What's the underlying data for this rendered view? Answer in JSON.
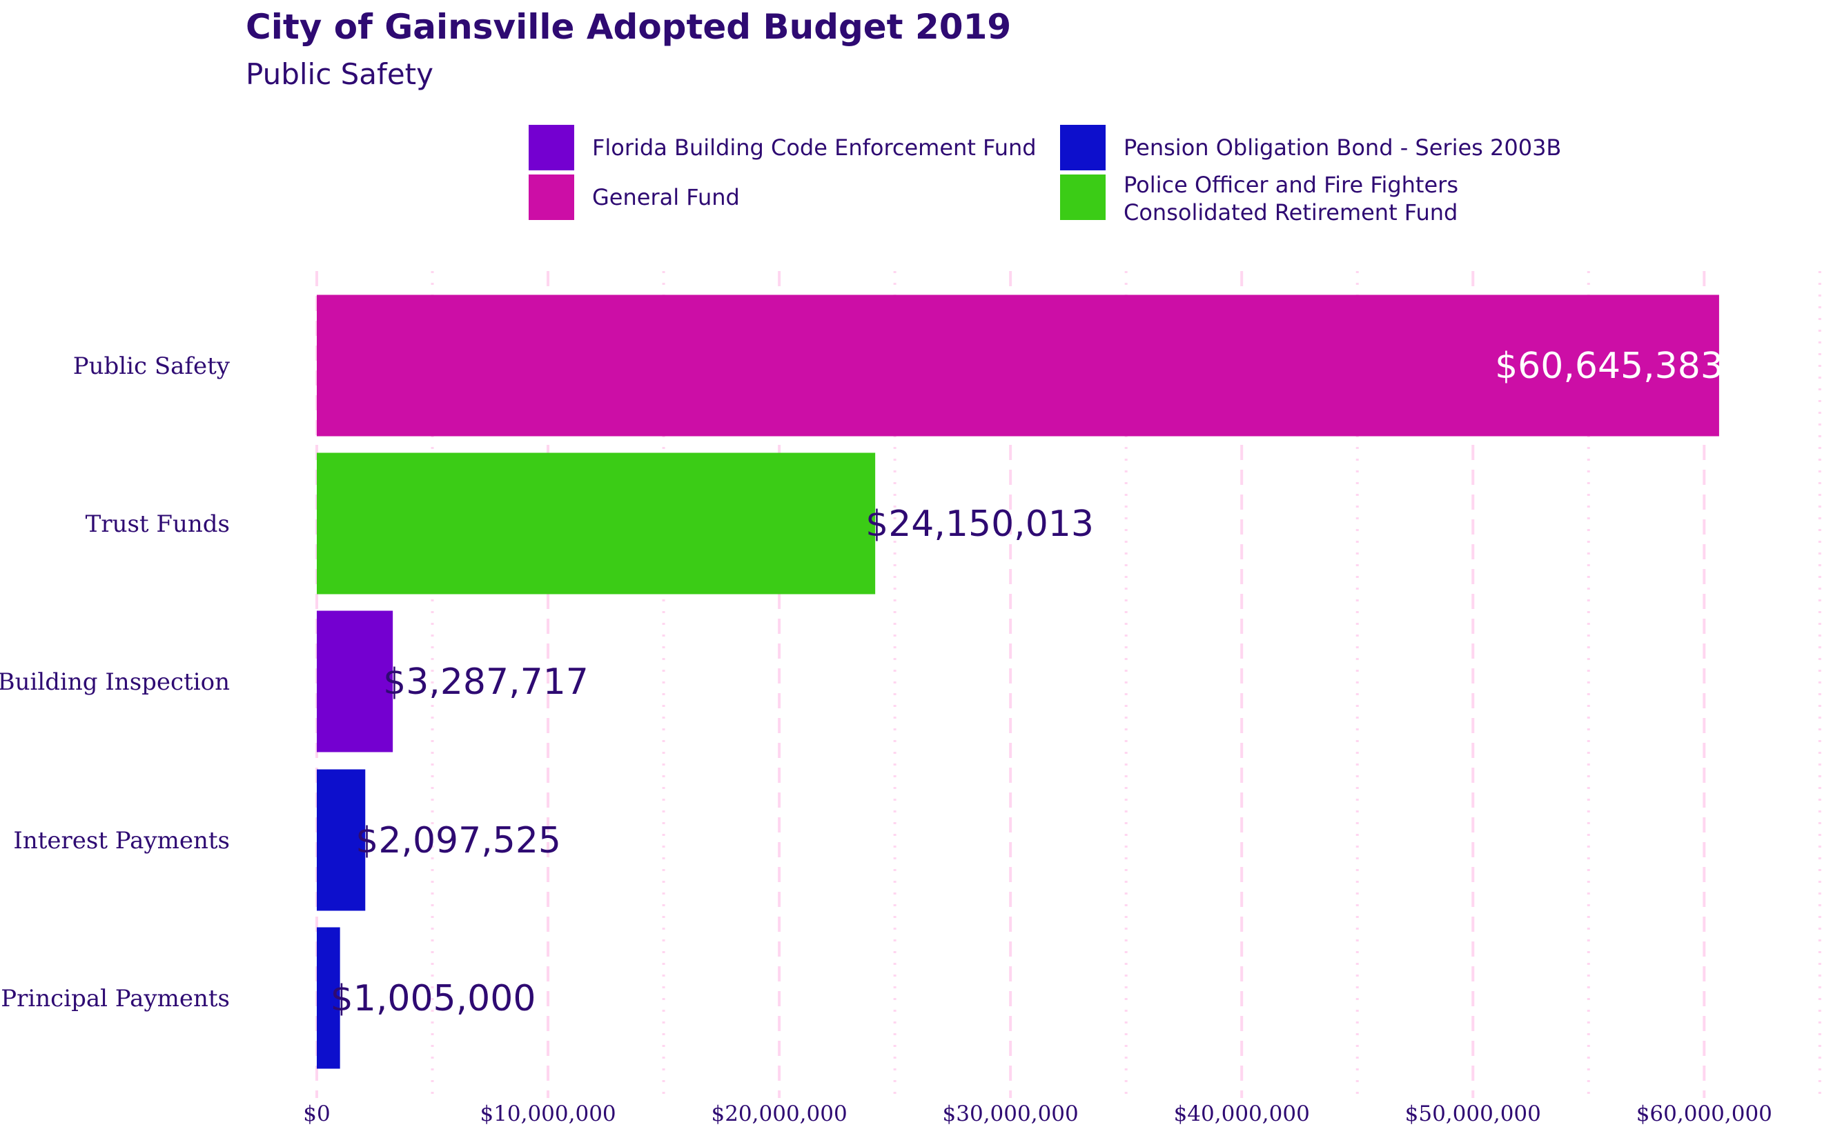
{
  "chart_data": {
    "type": "bar",
    "orientation": "horizontal",
    "title": "City of Gainsville Adopted Budget 2019",
    "subtitle": "Public Safety",
    "categories": [
      "Public Safety",
      "Trust Funds",
      "Building Inspection",
      "Interest Payments",
      "Principal Payments"
    ],
    "values": [
      60645383,
      24150013,
      3287717,
      2097525,
      1005000
    ],
    "value_labels": [
      "$60,645,383",
      "$24,150,013",
      "$3,287,717",
      "$2,097,525",
      "$1,005,000"
    ],
    "fund": [
      "General Fund",
      "Police Officer and Fire Fighters Consolidated Retirement Fund",
      "Florida Building Code Enforcement Fund",
      "Pension Obligation Bond - Series 2003B",
      "Pension Obligation Bond - Series 2003B"
    ],
    "legend": [
      {
        "name": "Florida Building Code Enforcement Fund",
        "color": "#7400d0"
      },
      {
        "name": "General Fund",
        "color": "#cc0ea6"
      },
      {
        "name": "Pension Obligation Bond - Series 2003B",
        "color": "#0d0fcc"
      },
      {
        "name": "Police Officer and Fire Fighters\nConsolidated Retirement Fund",
        "color": "#3bcc16"
      }
    ],
    "xlim": [
      0,
      65000000
    ],
    "xticks": [
      0,
      10000000,
      20000000,
      30000000,
      40000000,
      50000000,
      60000000
    ],
    "xtick_labels": [
      "$0",
      "$10,000,000",
      "$20,000,000",
      "$30,000,000",
      "$40,000,000",
      "$50,000,000",
      "$60,000,000"
    ],
    "xlabel": "",
    "ylabel": "",
    "grid": true,
    "legend_position": "top",
    "text_color": "#2e0a72",
    "grid_color": "#ffd6f0"
  }
}
